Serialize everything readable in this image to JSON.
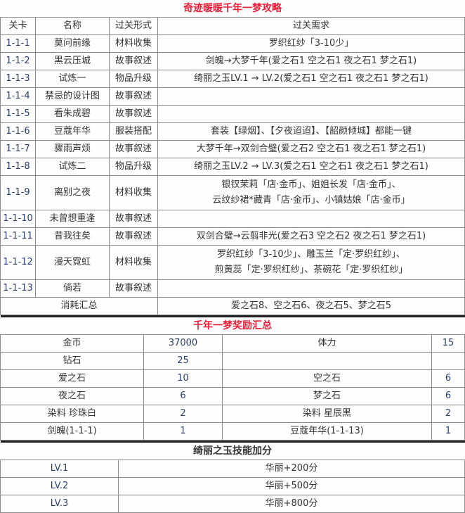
{
  "guide": {
    "title": "奇迹暖暖千年一梦攻略",
    "headers": [
      "关卡",
      "名称",
      "过关形式",
      "过关需求"
    ],
    "rows": [
      {
        "level": "1-1-1",
        "name": "莫问前缘",
        "type": "材料收集",
        "req": [
          "罗织红纱「3-10少」"
        ]
      },
      {
        "level": "1-1-2",
        "name": "黑云压城",
        "type": "故事叙述",
        "req": [
          "剑魄→大梦千年(爱之石1 空之石1 夜之石1 梦之石1)"
        ]
      },
      {
        "level": "1-1-3",
        "name": "试炼一",
        "type": "物品升级",
        "req": [
          "绮丽之玉LV.1 → LV.2(爱之石1 空之石1 夜之石1 梦之石1)"
        ]
      },
      {
        "level": "1-1-4",
        "name": "禁忌的设计图",
        "type": "故事叙述",
        "req": [
          ""
        ]
      },
      {
        "level": "1-1-5",
        "name": "看朱成碧",
        "type": "故事叙述",
        "req": [
          ""
        ]
      },
      {
        "level": "1-1-6",
        "name": "豆蔻年华",
        "type": "服装搭配",
        "req": [
          "套装【绿烟】、【夕夜迢迢】、【韶颜倾城】都能一键"
        ]
      },
      {
        "level": "1-1-7",
        "name": "骤雨声烦",
        "type": "故事叙述",
        "req": [
          "大梦千年→双剑合璧(爱之石2 空之石1 夜之石1 梦之石1)"
        ]
      },
      {
        "level": "1-1-8",
        "name": "试炼二",
        "type": "物品升级",
        "req": [
          "绮丽之玉LV.2 → LV.3(爱之石1 空之石1 夜之石1 梦之石1)"
        ]
      },
      {
        "level": "1-1-9",
        "name": "离别之夜",
        "type": "材料收集",
        "req": [
          "银钗茉莉「店·金币」、姐姐长发「店·金币」、",
          "云纹纱裙*藏青「店·金币」、小镇姑娘「店·金币」"
        ]
      },
      {
        "level": "1-1-10",
        "name": "未曾想重逢",
        "type": "故事叙述",
        "req": [
          ""
        ]
      },
      {
        "level": "1-1-11",
        "name": "昔我往矣",
        "type": "故事叙述",
        "req": [
          "双剑合璧→云翦非光(爱之石3 空之石2 夜之石1 梦之石1)"
        ]
      },
      {
        "level": "1-1-12",
        "name": "漫天霓虹",
        "type": "材料收集",
        "req": [
          "罗织红纱「3-10少」、雕玉兰「定·罗织红纱」、",
          "煎黄蕊「定·罗织红纱」、茶碗花「定·罗织红纱」"
        ]
      },
      {
        "level": "1-1-13",
        "name": "倘若",
        "type": "故事叙述",
        "req": [
          ""
        ]
      }
    ],
    "summary_label": "消耗汇总",
    "summary_value": "爱之石8、空之石6、夜之石5、梦之石5"
  },
  "rewards": {
    "title": "千年一梦奖励汇总",
    "rows": [
      [
        "金币",
        "37000",
        "体力",
        "15"
      ],
      [
        "钻石",
        "25",
        "",
        ""
      ],
      [
        "爱之石",
        "10",
        "空之石",
        "6"
      ],
      [
        "夜之石",
        "6",
        "梦之石",
        "6"
      ],
      [
        "染料 珍珠白",
        "2",
        "染料 星辰黑",
        "2"
      ],
      [
        "剑魄(1-1-1)",
        "1",
        "豆蔻年华(1-1-13)",
        "1"
      ]
    ]
  },
  "skill": {
    "title": "绮丽之玉技能加分",
    "rows": [
      [
        "LV.1",
        "华丽+200分"
      ],
      [
        "LV.2",
        "华丽+500分"
      ],
      [
        "LV.3",
        "华丽+800分"
      ]
    ]
  },
  "colors": {
    "title_red": "#e8213a",
    "border": "#8a8a8a"
  }
}
